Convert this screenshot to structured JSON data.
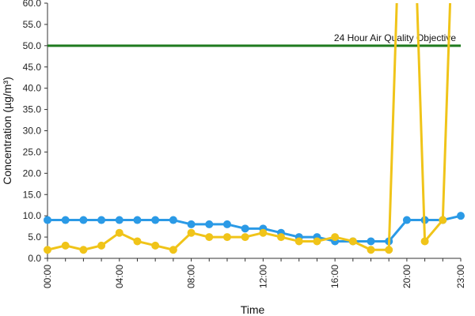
{
  "chart_data": {
    "type": "line",
    "xlabel": "Time",
    "ylabel": "Concentration (µg/m³)",
    "ylim": [
      0,
      60
    ],
    "y_ticks": [
      "0.0",
      "5.0",
      "10.0",
      "15.0",
      "20.0",
      "25.0",
      "30.0",
      "35.0",
      "40.0",
      "45.0",
      "50.0",
      "55.0",
      "60.0"
    ],
    "x_ticks": [
      "00:00",
      "04:00",
      "08:00",
      "12:00",
      "16:00",
      "20:00",
      "23:00"
    ],
    "x_hours": [
      0,
      1,
      2,
      3,
      4,
      5,
      6,
      7,
      8,
      9,
      10,
      11,
      12,
      13,
      14,
      15,
      16,
      17,
      18,
      19,
      20,
      21,
      22,
      23
    ],
    "grid": false,
    "reference_line": {
      "value": 50,
      "label": "24 Hour Air Quality Objective",
      "color": "#1e7a1e"
    },
    "series": [
      {
        "color": "#2b9ae6",
        "values": [
          9,
          9,
          9,
          9,
          9,
          9,
          9,
          9,
          8,
          8,
          8,
          7,
          7,
          6,
          5,
          5,
          4,
          4,
          4,
          4,
          9,
          9,
          9,
          10
        ]
      },
      {
        "color": "#f0c419",
        "values": [
          2,
          3,
          2,
          3,
          6,
          4,
          3,
          2,
          6,
          5,
          5,
          5,
          6,
          5,
          4,
          4,
          5,
          4,
          2,
          2,
          null,
          4,
          9,
          null
        ]
      }
    ]
  }
}
